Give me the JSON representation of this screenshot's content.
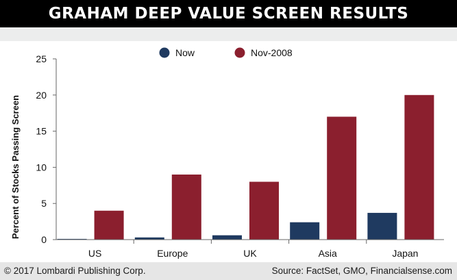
{
  "header": {
    "title": "GRAHAM DEEP VALUE SCREEN RESULTS"
  },
  "colors": {
    "banner": "#000000",
    "now": "#1f3a60",
    "nov2008": "#8b1f2e",
    "band": "#eceded",
    "footer": "#e6e6e6"
  },
  "chart_data": {
    "type": "bar",
    "categories": [
      "US",
      "Europe",
      "UK",
      "Asia",
      "Japan"
    ],
    "series": [
      {
        "name": "Now",
        "values": [
          0.1,
          0.3,
          0.6,
          2.4,
          3.7
        ]
      },
      {
        "name": "Nov-2008",
        "values": [
          4,
          9,
          8,
          17,
          20
        ]
      }
    ],
    "ylabel": "Percent of Stocks Passing Screen",
    "xlabel": "",
    "ylim": [
      0,
      25
    ],
    "yticks": [
      0,
      5,
      10,
      15,
      20,
      25
    ],
    "grid": false,
    "legend": "top-center"
  },
  "footer": {
    "copyright": "© 2017 Lombardi Publishing Corp.",
    "source": "Source: FactSet, GMO, Financialsense.com"
  }
}
